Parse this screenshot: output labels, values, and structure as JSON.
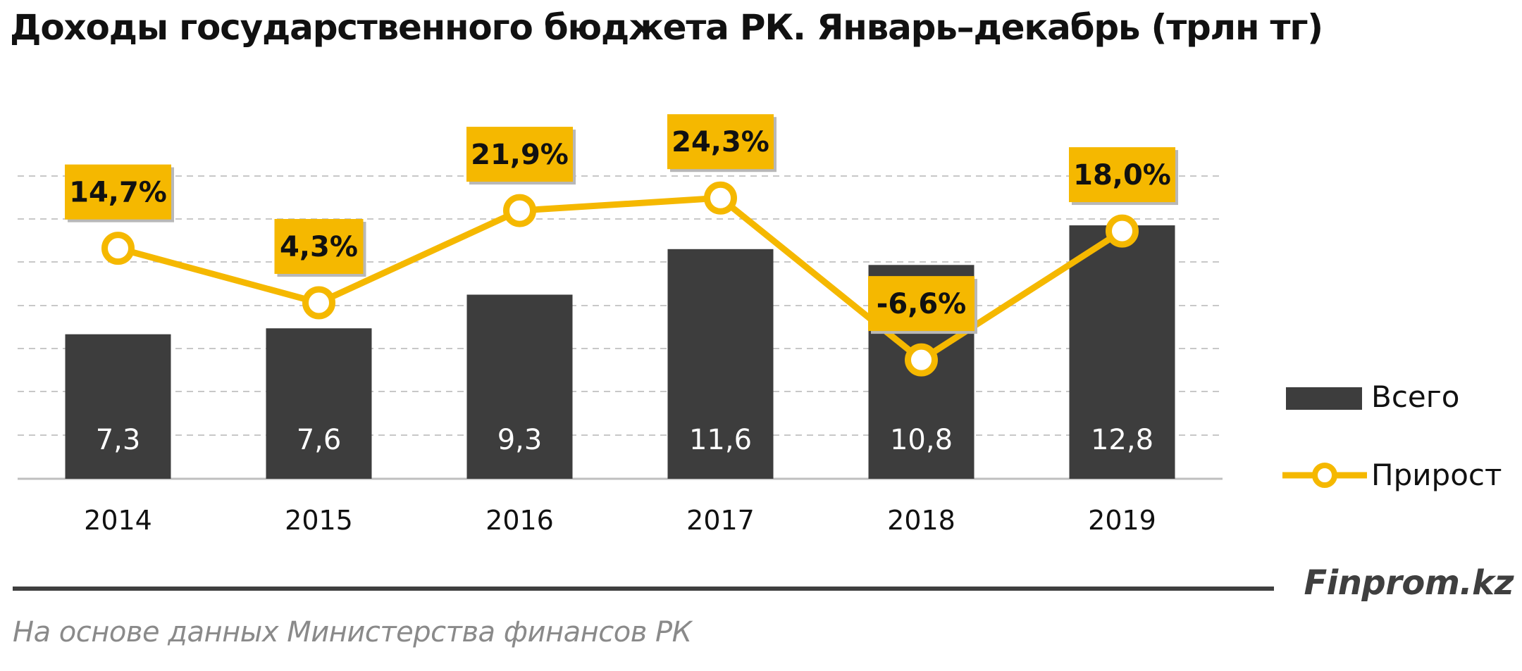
{
  "title": "Доходы государственного бюджета РК. Январь–декабрь (трлн тг)",
  "brand": "Finprom.kz",
  "source": "На основе данных Министерства финансов РК",
  "colors": {
    "bar": "#3d3d3d",
    "line": "#f5b800",
    "grid": "#c8c8c8",
    "label_box": "#f5b800"
  },
  "chart_data": {
    "type": "bar",
    "title": "Доходы государственного бюджета РК. Январь–декабрь (трлн тг)",
    "categories": [
      "2014",
      "2015",
      "2016",
      "2017",
      "2018",
      "2019"
    ],
    "series": [
      {
        "name": "Всего",
        "type": "bar",
        "values": [
          7.3,
          7.6,
          9.3,
          11.6,
          10.8,
          12.8
        ],
        "labels": [
          "7,3",
          "7,6",
          "9,3",
          "11,6",
          "10,8",
          "12,8"
        ]
      },
      {
        "name": "Прирост",
        "type": "line",
        "unit": "%",
        "values": [
          14.7,
          4.3,
          21.9,
          24.3,
          -6.6,
          18.0
        ],
        "labels": [
          "14,7%",
          "4,3%",
          "21,9%",
          "24,3%",
          "-6,6%",
          "18,0%"
        ]
      }
    ],
    "grid": true,
    "legend": "right",
    "ylim": [
      0,
      14
    ]
  }
}
